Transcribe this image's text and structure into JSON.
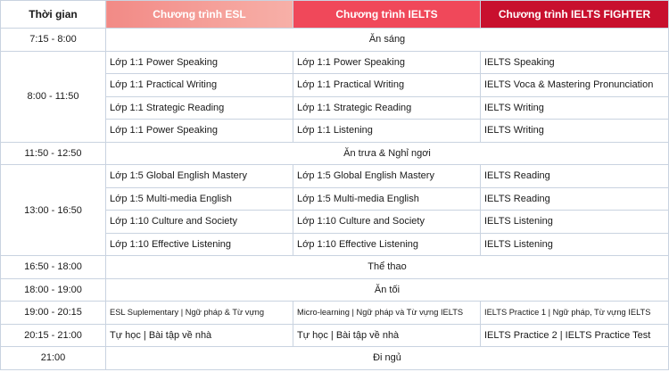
{
  "header": {
    "columns": [
      "Thời gian",
      "Chương trình ESL",
      "Chương trình IELTS",
      "Chương trình IELTS FIGHTER"
    ]
  },
  "rows": [
    {
      "time": "7:15 - 8:00",
      "all": "Ăn sáng"
    },
    {
      "time": "8:00 - 11:50",
      "lessons": [
        [
          "Lớp 1:1 Power Speaking",
          "Lớp 1:1 Power Speaking",
          "IELTS Speaking"
        ],
        [
          "Lớp 1:1 Practical Writing",
          "Lớp 1:1 Practical Writing",
          "IELTS Voca & Mastering Pronunciation"
        ],
        [
          "Lớp 1:1 Strategic Reading",
          "Lớp 1:1 Strategic Reading",
          "IELTS Writing"
        ],
        [
          "Lớp 1:1 Power Speaking",
          "Lớp 1:1 Listening",
          "IELTS Writing"
        ]
      ]
    },
    {
      "time": "11:50 - 12:50",
      "all": "Ăn trưa & Nghỉ ngơi"
    },
    {
      "time": "13:00 - 16:50",
      "lessons": [
        [
          "Lớp 1:5 Global English Mastery",
          "Lớp 1:5 Global English Mastery",
          "IELTS Reading"
        ],
        [
          "Lớp 1:5 Multi-media English",
          "Lớp 1:5 Multi-media English",
          "IELTS Reading"
        ],
        [
          "Lớp 1:10 Culture and Society",
          "Lớp 1:10 Culture and Society",
          "IELTS Listening"
        ],
        [
          "Lớp 1:10 Effective Listening",
          "Lớp 1:10 Effective Listening",
          "IELTS Listening"
        ]
      ]
    },
    {
      "time": "16:50 - 18:00",
      "all": "Thể thao"
    },
    {
      "time": "18:00 - 19:00",
      "all": "Ăn tối"
    },
    {
      "time": "19:00 - 20:15",
      "lessons": [
        [
          "ESL Suplementary  | Ngữ pháp & Từ vựng",
          "Micro-learning | Ngữ pháp và Từ vựng IELTS",
          "IELTS Practice 1 |   Ngữ pháp, Từ vựng IELTS"
        ]
      ]
    },
    {
      "time": "20:15 - 21:00",
      "lessons": [
        [
          "Tự học | Bài tập về nhà",
          "Tự học | Bài tập về nhà",
          "IELTS Practice 2 | IELTS Practice Test"
        ]
      ]
    },
    {
      "time": "21:00",
      "all": "Đi ngủ"
    }
  ]
}
